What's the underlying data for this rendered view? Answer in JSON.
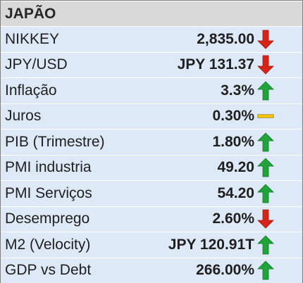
{
  "title": "JAPÃO",
  "rows": [
    {
      "label": "NIKKEY",
      "value": "2,835.00",
      "trend": "down"
    },
    {
      "label": "JPY/USD",
      "value": "JPY 131.37",
      "trend": "down"
    },
    {
      "label": "Inflação",
      "value": "3.3%",
      "trend": "up"
    },
    {
      "label": "Juros",
      "value": "0.30%",
      "trend": "flat"
    },
    {
      "label": "PIB (Trimestre)",
      "value": "1.80%",
      "trend": "up"
    },
    {
      "label": "PMI industria",
      "value": "49.20",
      "trend": "up"
    },
    {
      "label": "PMI Serviços",
      "value": "54.20",
      "trend": "up"
    },
    {
      "label": "Desemprego",
      "value": "2.60%",
      "trend": "down"
    },
    {
      "label": "M2 (Velocity)",
      "value": "JPY 120.91T",
      "trend": "up"
    },
    {
      "label": "GDP vs Debt",
      "value": "266.00%",
      "trend": "up"
    }
  ],
  "colors": {
    "header_bg": "#d9d9d9",
    "row_bg": "#dde9f6",
    "up": "#1fa33a",
    "down": "#d62418",
    "flat": "#f5c400"
  }
}
